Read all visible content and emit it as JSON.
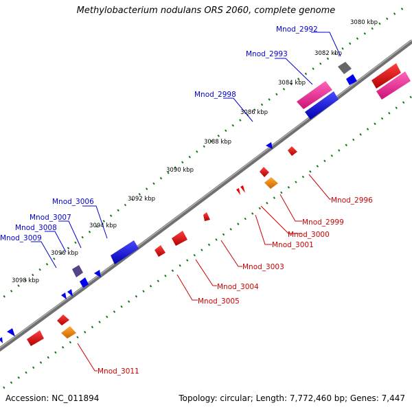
{
  "title": "Methylobacterium nodulans ORS 2060, complete genome",
  "footer": {
    "accession": "Accession: NC_011894",
    "topology": "Topology: circular; Length: 7,772,460 bp; Genes: 7,447"
  },
  "kbp_labels": [
    "3080 kbp",
    "3082 kbp",
    "3084 kbp",
    "3086 kbp",
    "3088 kbp",
    "3090 kbp",
    "3092 kbp",
    "3094 kbp",
    "3096 kbp",
    "3098 kbp"
  ],
  "gene_labels": {
    "Mnod_2992": "Mnod_2992",
    "Mnod_2993": "Mnod_2993",
    "Mnod_2998": "Mnod_2998",
    "Mnod_3006": "Mnod_3006",
    "Mnod_3007": "Mnod_3007",
    "Mnod_3008": "Mnod_3008",
    "Mnod_3009": "Mnod_3009",
    "Mnod_2996": "Mnod_2996",
    "Mnod_2999": "Mnod_2999",
    "Mnod_3000": "Mnod_3000",
    "Mnod_3001": "Mnod_3001",
    "Mnod_3003": "Mnod_3003",
    "Mnod_3004": "Mnod_3004",
    "Mnod_3005": "Mnod_3005",
    "Mnod_3011": "Mnod_3011"
  },
  "colors": {
    "backbone": "#808080",
    "forward": "#0000ee",
    "reverse": "#ee0000",
    "pink": "#ff3399",
    "orange": "#ff8800",
    "gray": "#666666",
    "purple": "#554488",
    "tick": "#117711"
  }
}
